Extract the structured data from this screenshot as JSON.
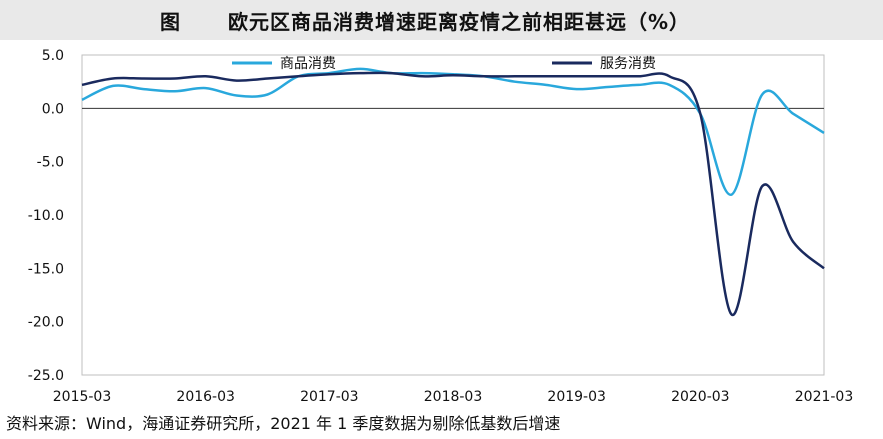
{
  "title": {
    "label": "图",
    "text": "欧元区商品消费增速距离疫情之前相距甚远（%）"
  },
  "source_note": "资料来源：Wind，海通证券研究所，2021 年 1 季度数据为剔除低基数后增速",
  "colors": {
    "goods": "#29a8dc",
    "services": "#1a2a5e",
    "zero_line": "#333333",
    "axis_text": "#111111"
  },
  "chart_data": {
    "type": "line",
    "title": "欧元区商品消费增速距离疫情之前相距甚远（%）",
    "xlabel": "",
    "ylabel": "",
    "ylim": [
      -25,
      5
    ],
    "yticks": [
      5,
      0,
      -5,
      -10,
      -15,
      -20,
      -25
    ],
    "ytick_labels": [
      "5.0",
      "0.0",
      "-5.0",
      "-10.0",
      "-15.0",
      "-20.0",
      "-25.0"
    ],
    "xlim": [
      0,
      24
    ],
    "xticks": [
      0,
      4,
      8,
      12,
      16,
      20,
      24
    ],
    "xtick_labels": [
      "2015-03",
      "2016-03",
      "2017-03",
      "2018-03",
      "2019-03",
      "2020-03",
      "2021-03"
    ],
    "x": [
      0,
      1,
      2,
      3,
      4,
      5,
      6,
      7,
      8,
      9,
      10,
      11,
      12,
      13,
      14,
      15,
      16,
      17,
      18,
      19,
      20,
      21,
      22,
      23,
      24
    ],
    "legend_position": "top",
    "grid": false,
    "series": [
      {
        "name": "商品消费",
        "values": [
          0.8,
          2.1,
          1.8,
          1.6,
          1.9,
          1.2,
          1.3,
          3.0,
          3.3,
          3.7,
          3.3,
          3.3,
          3.2,
          3.0,
          2.5,
          2.2,
          1.8,
          2.0,
          2.2,
          2.2,
          -0.5,
          -8.1,
          1.3,
          -0.5,
          -2.3
        ]
      },
      {
        "name": "服务消费",
        "values": [
          2.2,
          2.8,
          2.8,
          2.8,
          3.0,
          2.6,
          2.8,
          3.0,
          3.2,
          3.3,
          3.3,
          3.0,
          3.1,
          3.0,
          3.0,
          3.0,
          3.0,
          3.0,
          3.0,
          3.0,
          -0.5,
          -19.3,
          -7.3,
          -12.5,
          -15.0
        ]
      }
    ]
  }
}
